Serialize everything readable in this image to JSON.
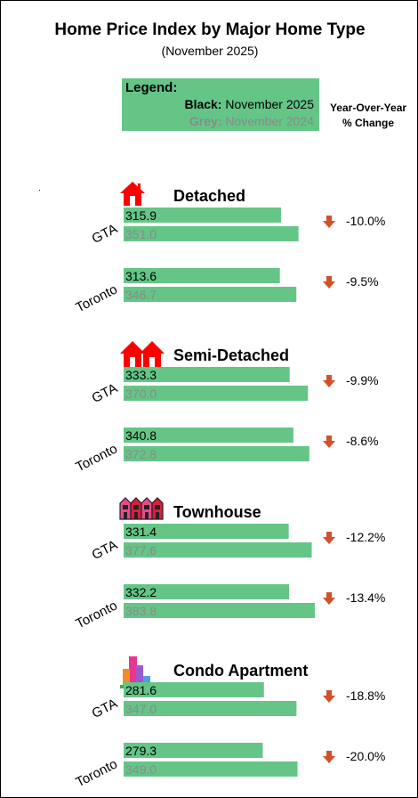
{
  "title": "Home Price Index by Major Home Type",
  "subtitle": "(November 2025)",
  "legend": {
    "title": "Legend:",
    "black_key": "Black:",
    "black_value": "November 2025",
    "grey_key": "Grey:",
    "grey_value": "November 2024"
  },
  "yoy_header": [
    "Year-Over-Year",
    "% Change"
  ],
  "colors": {
    "bar": "#64c587",
    "current_text": "#000000",
    "previous_text": "#8a8a8a",
    "down_arrow": "#d2512a",
    "house_icon": "#ff0000"
  },
  "chart_data": {
    "type": "bar",
    "orientation": "horizontal",
    "title": "Home Price Index by Major Home Type",
    "subtitle": "(November 2025)",
    "series_labels": [
      "November 2025",
      "November 2024"
    ],
    "groups": [
      {
        "home_type": "Detached",
        "icon": "detached-house-icon",
        "rows": [
          {
            "region": "GTA",
            "nov_2025": 315.9,
            "nov_2024": 351.0,
            "yoy": "-10.0%",
            "direction": "down"
          },
          {
            "region": "Toronto",
            "nov_2025": 313.6,
            "nov_2024": 346.7,
            "yoy": "-9.5%",
            "direction": "down"
          }
        ]
      },
      {
        "home_type": "Semi-Detached",
        "icon": "semi-detached-houses-icon",
        "rows": [
          {
            "region": "GTA",
            "nov_2025": 333.3,
            "nov_2024": 370.0,
            "yoy": "-9.9%",
            "direction": "down"
          },
          {
            "region": "Toronto",
            "nov_2025": 340.8,
            "nov_2024": 372.8,
            "yoy": "-8.6%",
            "direction": "down"
          }
        ]
      },
      {
        "home_type": "Townhouse",
        "icon": "townhouse-icon",
        "rows": [
          {
            "region": "GTA",
            "nov_2025": 331.4,
            "nov_2024": 377.6,
            "yoy": "-12.2%",
            "direction": "down"
          },
          {
            "region": "Toronto",
            "nov_2025": 332.2,
            "nov_2024": 383.8,
            "yoy": "-13.4%",
            "direction": "down"
          }
        ]
      },
      {
        "home_type": "Condo Apartment",
        "icon": "condo-buildings-icon",
        "rows": [
          {
            "region": "GTA",
            "nov_2025": 281.6,
            "nov_2024": 347.0,
            "yoy": "-18.8%",
            "direction": "down"
          },
          {
            "region": "Toronto",
            "nov_2025": 279.3,
            "nov_2024": 349.0,
            "yoy": "-20.0%",
            "direction": "down"
          }
        ]
      }
    ]
  }
}
